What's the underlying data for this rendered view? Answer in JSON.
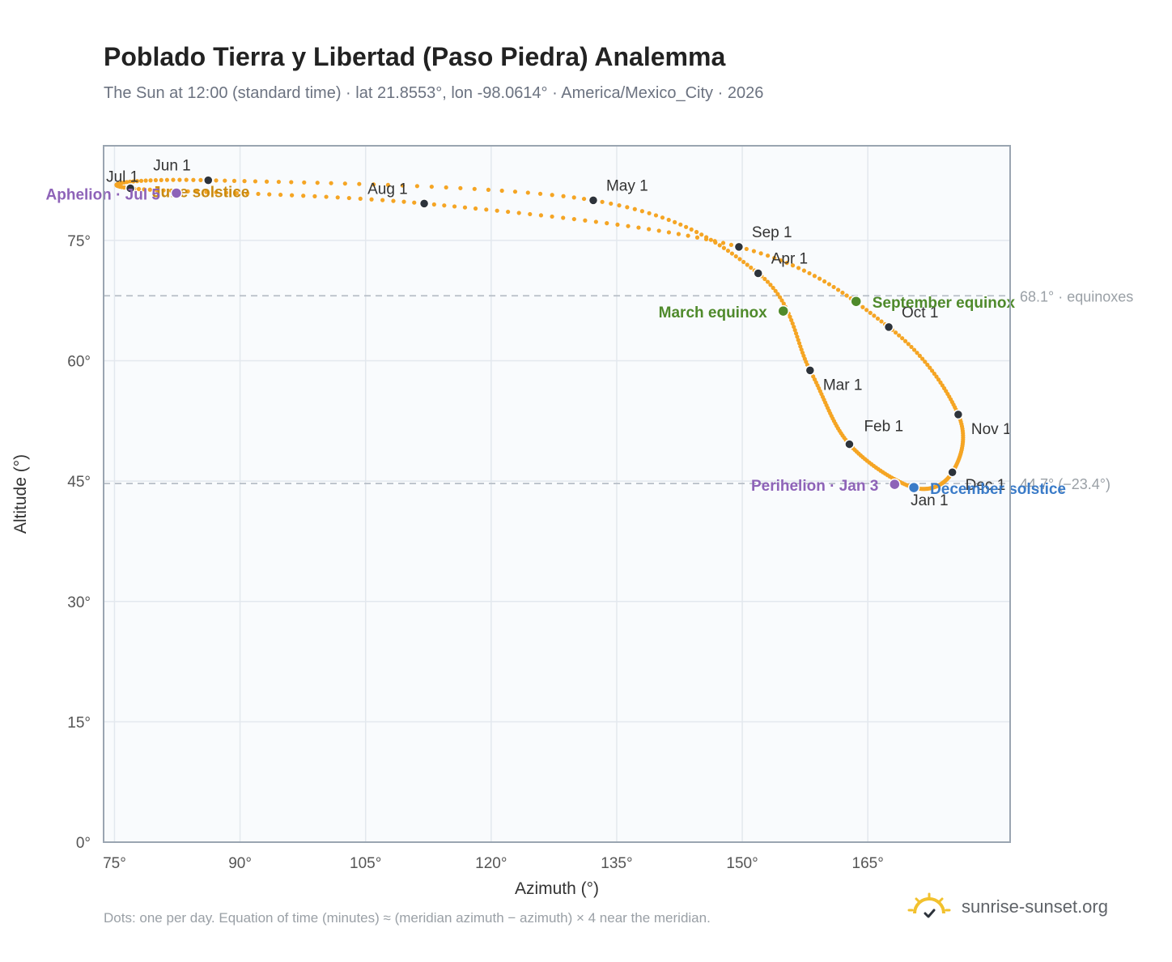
{
  "header": {
    "title": "Poblado Tierra y Libertad (Paso Piedra) Analemma",
    "subtitle": "The Sun at 12:00 (standard time) · lat 21.8553°, lon -98.0614° · America/Mexico_City · 2026"
  },
  "footer": {
    "note": "Dots: one per day. Equation of time (minutes) ≈ (meridian azimuth − azimuth) × 4 near the meridian.",
    "brand": "sunrise-sunset.org"
  },
  "colors": {
    "curve": "#f5a524",
    "month_dot": "#2d333b",
    "equinox": "#4f8a2b",
    "december_solstice": "#3a7bc8",
    "june_solstice": "#c98a10",
    "apsis": "#8e63b8",
    "plot_bg": "#f9fbfd",
    "grid": "#e3e8ee",
    "frame": "#9aa5b1"
  },
  "chart_data": {
    "type": "scatter",
    "xlabel": "Azimuth (°)",
    "ylabel": "Altitude (°)",
    "xlim": [
      73.7,
      182
    ],
    "ylim": [
      0,
      86.8
    ],
    "x_ticks": [
      75,
      90,
      105,
      120,
      135,
      150,
      165
    ],
    "x_tick_labels": [
      "75°",
      "90°",
      "105°",
      "120°",
      "135°",
      "150°",
      "165°"
    ],
    "y_ticks": [
      0,
      15,
      30,
      45,
      60,
      75
    ],
    "y_tick_labels": [
      "0°",
      "15°",
      "30°",
      "45°",
      "60°",
      "75°"
    ],
    "grid": true,
    "reference_lines": [
      {
        "y": 68.1,
        "label": "68.1° · equinoxes"
      },
      {
        "y": 44.7,
        "label": "44.7° (−23.4°)"
      }
    ],
    "month_points": [
      {
        "label": "Jan 1",
        "x": 170.5,
        "y": 44.2
      },
      {
        "label": "Feb 1",
        "x": 162.8,
        "y": 49.6
      },
      {
        "label": "Mar 1",
        "x": 158.1,
        "y": 58.8
      },
      {
        "label": "Apr 1",
        "x": 151.9,
        "y": 70.9
      },
      {
        "label": "May 1",
        "x": 132.2,
        "y": 80.0
      },
      {
        "label": "Jun 1",
        "x": 86.2,
        "y": 82.5
      },
      {
        "label": "Jul 1",
        "x": 76.9,
        "y": 81.5
      },
      {
        "label": "Aug 1",
        "x": 112.0,
        "y": 79.6
      },
      {
        "label": "Sep 1",
        "x": 149.6,
        "y": 74.2
      },
      {
        "label": "Oct 1",
        "x": 167.5,
        "y": 64.2
      },
      {
        "label": "Nov 1",
        "x": 175.8,
        "y": 53.3
      },
      {
        "label": "Dec 1",
        "x": 175.1,
        "y": 46.1
      }
    ],
    "events": [
      {
        "label": "June solstice",
        "x": 82.4,
        "y": 80.9
      },
      {
        "label": "Aphelion · Jul 5",
        "x": 82.4,
        "y": 80.9
      },
      {
        "label": "March equinox",
        "x": 154.9,
        "y": 66.2
      },
      {
        "label": "September equinox",
        "x": 163.6,
        "y": 67.4
      },
      {
        "label": "Perihelion · Jan 3",
        "x": 168.2,
        "y": 44.6
      },
      {
        "label": "December solstice",
        "x": 170.5,
        "y": 44.2
      }
    ]
  }
}
